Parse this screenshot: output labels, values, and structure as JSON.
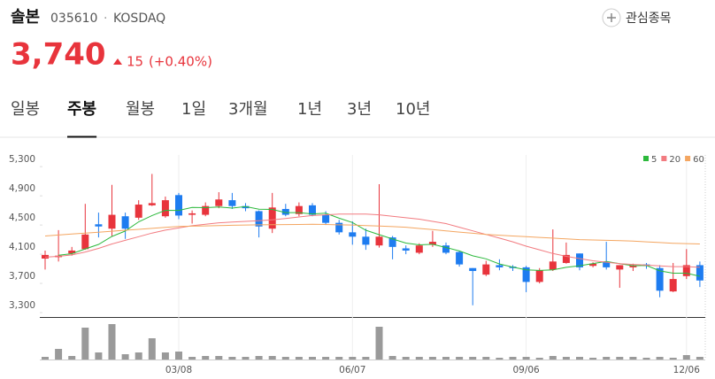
{
  "header": {
    "name": "솔본",
    "code": "035610",
    "separator": "·",
    "market": "KOSDAQ",
    "watch_button": "관심종목",
    "price": "3,740",
    "change": "15",
    "change_pct": "(+0.40%)"
  },
  "tabs": [
    {
      "label": "일봉",
      "active": false
    },
    {
      "label": "주봉",
      "active": true
    },
    {
      "label": "월봉",
      "active": false
    },
    {
      "label": "1일",
      "active": false
    },
    {
      "label": "3개월",
      "active": false
    },
    {
      "label": "1년",
      "active": false
    },
    {
      "label": "3년",
      "active": false
    },
    {
      "label": "10년",
      "active": false
    }
  ],
  "chart_data": {
    "type": "candlestick",
    "categories": [
      null,
      null,
      null,
      null,
      null,
      null,
      null,
      null,
      null,
      null,
      "03/08",
      null,
      null,
      null,
      null,
      null,
      null,
      null,
      null,
      null,
      null,
      null,
      null,
      "06/07",
      null,
      null,
      null,
      null,
      null,
      null,
      null,
      null,
      null,
      null,
      null,
      null,
      "09/06",
      null,
      null,
      null,
      null,
      null,
      null,
      null,
      null,
      null,
      null,
      null,
      "12/06",
      null
    ],
    "open": [
      4040,
      4060,
      4110,
      4170,
      4510,
      4450,
      4620,
      4600,
      4770,
      4620,
      4910,
      4640,
      4640,
      4760,
      4840,
      4760,
      4690,
      4450,
      4720,
      4650,
      4770,
      4640,
      4530,
      4400,
      4340,
      4220,
      4330,
      4180,
      4120,
      4230,
      4220,
      4130,
      3910,
      3820,
      3950,
      3930,
      3920,
      3720,
      3890,
      3980,
      4110,
      3940,
      3990,
      3890,
      3920,
      3960,
      3910,
      3590,
      3800,
      3950
    ],
    "high": [
      4150,
      4430,
      4200,
      4790,
      4670,
      5050,
      4670,
      4840,
      5200,
      4890,
      4940,
      4700,
      4810,
      4950,
      4940,
      4800,
      4700,
      4940,
      4790,
      4810,
      4800,
      4690,
      4570,
      4550,
      4450,
      5060,
      4350,
      4220,
      4250,
      4420,
      4260,
      4150,
      3910,
      4010,
      4030,
      3950,
      3940,
      3910,
      4440,
      4260,
      4110,
      3990,
      4270,
      3950,
      3970,
      3980,
      3950,
      3980,
      4170,
      4000
    ],
    "low": [
      3890,
      4000,
      4080,
      4160,
      4330,
      4350,
      4310,
      4570,
      4760,
      4600,
      4580,
      4520,
      4620,
      4730,
      4720,
      4690,
      4330,
      4390,
      4620,
      4620,
      4620,
      4500,
      4370,
      4230,
      4160,
      4190,
      4030,
      4100,
      4100,
      4200,
      4100,
      3930,
      3400,
      3800,
      3880,
      3870,
      3580,
      3700,
      3870,
      3970,
      3880,
      3920,
      3890,
      3640,
      3870,
      3900,
      3510,
      3580,
      3760,
      3650
    ],
    "close": [
      4090,
      4080,
      4150,
      4370,
      4480,
      4640,
      4450,
      4780,
      4800,
      4840,
      4630,
      4660,
      4760,
      4850,
      4760,
      4730,
      4480,
      4740,
      4640,
      4760,
      4640,
      4530,
      4400,
      4340,
      4230,
      4340,
      4200,
      4150,
      4220,
      4270,
      4120,
      3960,
      3870,
      3960,
      3920,
      3910,
      3720,
      3880,
      4000,
      4090,
      3920,
      3970,
      3920,
      3950,
      3950,
      3940,
      3600,
      3760,
      3950,
      3740
    ],
    "up_color": "#e8343c",
    "down_color": "#1e7cf0",
    "series": [
      {
        "name": "5",
        "color": "#2cb93c",
        "values": [
          null,
          4085,
          4107,
          4173,
          4234,
          4344,
          4418,
          4544,
          4630,
          4702,
          4700,
          4742,
          4738,
          4748,
          4732,
          4752,
          4716,
          4714,
          4670,
          4670,
          4652,
          4662,
          4594,
          4534,
          4428,
          4368,
          4308,
          4252,
          4228,
          4236,
          4192,
          4144,
          4078,
          4036,
          3966,
          3924,
          3886,
          3878,
          3886,
          3920,
          3942,
          3972,
          4000,
          3970,
          3942,
          3946,
          3872,
          3840,
          3840,
          3798
        ]
      },
      {
        "name": "20",
        "color": "#f27b80",
        "values": [
          4060,
          4070,
          4090,
          4130,
          4180,
          4240,
          4290,
          4340,
          4390,
          4430,
          4460,
          4490,
          4510,
          4530,
          4540,
          4550,
          4560,
          4570,
          4590,
          4610,
          4630,
          4640,
          4650,
          4650,
          4650,
          4640,
          4620,
          4600,
          4580,
          4550,
          4520,
          4470,
          4420,
          4370,
          4320,
          4270,
          4210,
          4160,
          4110,
          4070,
          4040,
          4010,
          3990,
          3970,
          3960,
          3950,
          3940,
          3930,
          3930,
          3920
        ]
      },
      {
        "name": "60",
        "color": "#f4a661",
        "values": [
          4350,
          4363,
          4376,
          4389,
          4402,
          4415,
          4428,
          4441,
          4454,
          4467,
          4480,
          4484,
          4488,
          4492,
          4496,
          4500,
          4502,
          4504,
          4506,
          4508,
          4510,
          4507,
          4503,
          4500,
          4492,
          4485,
          4478,
          4470,
          4453,
          4437,
          4420,
          4403,
          4387,
          4370,
          4360,
          4350,
          4340,
          4330,
          4320,
          4310,
          4300,
          4295,
          4290,
          4285,
          4280,
          4270,
          4260,
          4250,
          4245,
          4240
        ]
      }
    ],
    "ylim": [
      3300,
      5460
    ],
    "yticks": [
      {
        "value": 3300,
        "label": "3,300"
      },
      {
        "value": 3700,
        "label": "3,700"
      },
      {
        "value": 4100,
        "label": "4,100"
      },
      {
        "value": 4500,
        "label": "4,500"
      },
      {
        "value": 4900,
        "label": "4,900"
      },
      {
        "value": 5300,
        "label": "5,300"
      }
    ],
    "volume": {
      "color": "#9a9a9a",
      "ylim": [
        0,
        46
      ],
      "values": [
        3,
        12,
        4,
        36,
        8,
        40,
        6,
        8,
        24,
        8,
        9,
        3,
        4,
        4,
        3,
        3,
        4,
        4,
        3,
        3,
        3,
        3,
        3,
        3,
        3,
        37,
        4,
        3,
        3,
        3,
        3,
        3,
        3,
        3,
        2,
        3,
        3,
        2,
        4,
        3,
        3,
        2,
        3,
        3,
        3,
        2,
        3,
        2,
        5,
        3
      ]
    }
  }
}
